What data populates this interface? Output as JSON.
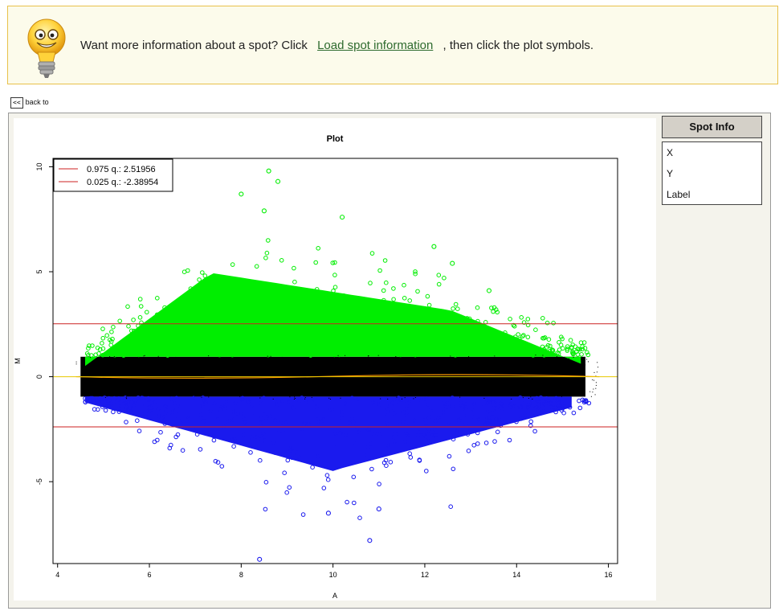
{
  "tip": {
    "text": "Want more information about a spot? Click",
    "link": "Load spot information",
    "after": ", then click the plot symbols."
  },
  "nav": {
    "back_button": "<<",
    "back_label": "back to"
  },
  "spot_info": {
    "title": "Spot Info",
    "rows": [
      "X",
      "Y",
      "Label"
    ]
  },
  "chart_data": {
    "type": "scatter",
    "title": "Plot",
    "xlabel": "A",
    "ylabel": "M",
    "xlim": [
      3.9,
      16.2
    ],
    "ylim": [
      -8.9,
      10.4
    ],
    "x_ticks": [
      4,
      6,
      8,
      10,
      12,
      14,
      16
    ],
    "y_ticks": [
      -5,
      0,
      5,
      10
    ],
    "legend_position": "top-left",
    "legend": [
      {
        "label": "0.975 q.: 2.51956",
        "color": "#cc2222"
      },
      {
        "label": "0.025 q.: -2.38954",
        "color": "#cc2222"
      }
    ],
    "hlines": [
      {
        "y": 2.51956,
        "color": "#cc2222"
      },
      {
        "y": -2.38954,
        "color": "#cc2222"
      },
      {
        "y": 0,
        "color": "#e8c800"
      }
    ],
    "bands": [
      {
        "name": "up",
        "color": "#00ee00",
        "m_range": [
          1,
          7.5
        ]
      },
      {
        "name": "middle",
        "color": "#000000",
        "m_range": [
          -1,
          1
        ]
      },
      {
        "name": "down",
        "color": "#1a1aee",
        "m_range": [
          -6.5,
          -1
        ]
      }
    ],
    "notable_points": [
      {
        "x": 8.6,
        "y": 9.8
      },
      {
        "x": 8.8,
        "y": 9.3
      },
      {
        "x": 8.0,
        "y": 8.7
      },
      {
        "x": 10.2,
        "y": 7.6
      },
      {
        "x": 8.5,
        "y": 7.9
      },
      {
        "x": 12.2,
        "y": 6.2
      },
      {
        "x": 10.8,
        "y": -7.8
      },
      {
        "x": 8.4,
        "y": -8.7
      },
      {
        "x": 12.6,
        "y": 5.4
      },
      {
        "x": 13.4,
        "y": 4.1
      },
      {
        "x": 11.0,
        "y": -6.3
      },
      {
        "x": 9.9,
        "y": -6.5
      }
    ],
    "colors": {
      "up": "#00ee00",
      "middle": "#000000",
      "down": "#1a1aee",
      "loess": "#ff9900"
    }
  }
}
